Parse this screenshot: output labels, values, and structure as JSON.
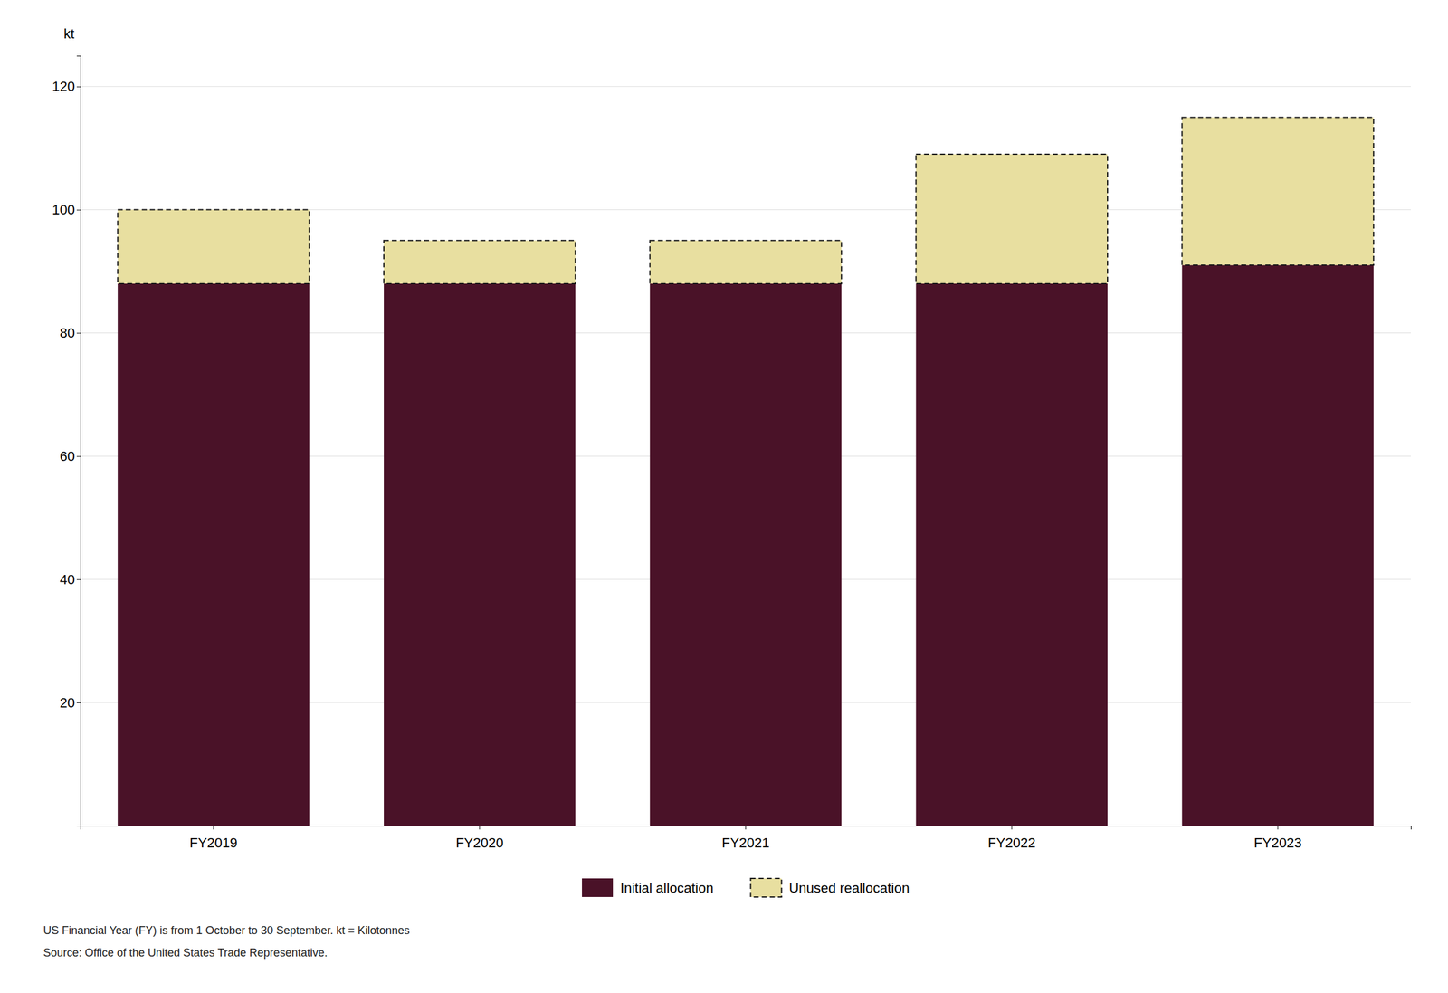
{
  "chart_data": {
    "type": "bar",
    "stacked": true,
    "y_label": "kt",
    "categories": [
      "FY2019",
      "FY2020",
      "FY2021",
      "FY2022",
      "FY2023"
    ],
    "series": [
      {
        "name": "Initial allocation",
        "color": "#4a1228",
        "values": [
          88,
          88,
          88,
          88,
          91
        ]
      },
      {
        "name": "Unused reallocation",
        "color": "#e8dfa0",
        "line_style": "dashed",
        "values": [
          12,
          7,
          7,
          21,
          24
        ]
      }
    ],
    "ylim": [
      0,
      125
    ],
    "yticks": [
      20,
      40,
      60,
      80,
      100,
      120
    ],
    "grid": true,
    "legend": "bottom",
    "annotations": [
      "US Financial Year (FY) is from 1 October to 30 September. kt = Kilotonnes",
      "Source: Office of the United States Trade Representative."
    ]
  }
}
